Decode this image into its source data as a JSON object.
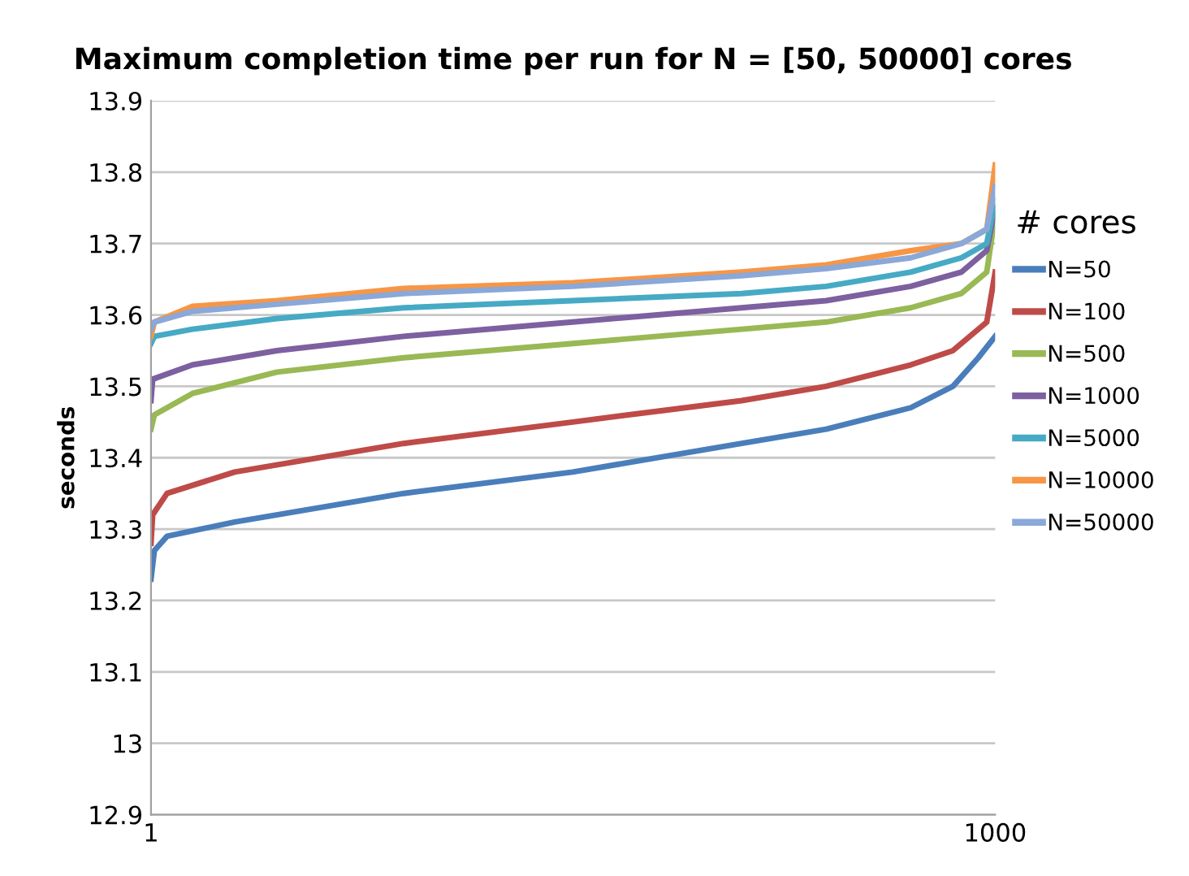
{
  "chart_data": {
    "type": "line",
    "title": "Maximum completion time per run for N = [50, 50000] cores",
    "ylabel": "seconds",
    "legend_title": "# cores",
    "legend": "right",
    "grid": "y",
    "marker": "none",
    "line_style": "solid",
    "xlim": [
      1,
      1000
    ],
    "xticks": [
      1,
      1000
    ],
    "ylim": [
      12.9,
      13.9
    ],
    "yticks": [
      12.9,
      13,
      13.1,
      13.2,
      13.3,
      13.4,
      13.5,
      13.6,
      13.7,
      13.8,
      13.9
    ],
    "series": [
      {
        "name": "N=50",
        "color": "#4a7ebb",
        "x": [
          1,
          5,
          20,
          100,
          300,
          500,
          700,
          800,
          900,
          950,
          980,
          1000
        ],
        "values": [
          13.23,
          13.27,
          13.29,
          13.31,
          13.35,
          13.38,
          13.42,
          13.44,
          13.47,
          13.5,
          13.54,
          13.57
        ]
      },
      {
        "name": "N=100",
        "color": "#be4b48",
        "x": [
          1,
          3,
          20,
          100,
          300,
          500,
          700,
          800,
          900,
          950,
          990,
          1000
        ],
        "values": [
          13.28,
          13.32,
          13.35,
          13.38,
          13.42,
          13.45,
          13.48,
          13.5,
          13.53,
          13.55,
          13.59,
          13.66
        ]
      },
      {
        "name": "N=500",
        "color": "#98b954",
        "x": [
          1,
          5,
          50,
          150,
          300,
          500,
          700,
          800,
          900,
          960,
          990,
          1000
        ],
        "values": [
          13.44,
          13.46,
          13.49,
          13.52,
          13.54,
          13.56,
          13.58,
          13.59,
          13.61,
          13.63,
          13.66,
          13.74
        ]
      },
      {
        "name": "N=1000",
        "color": "#7d60a0",
        "x": [
          1,
          3,
          50,
          150,
          300,
          500,
          700,
          800,
          900,
          960,
          990,
          1000
        ],
        "values": [
          13.48,
          13.51,
          13.53,
          13.55,
          13.57,
          13.59,
          13.61,
          13.62,
          13.64,
          13.66,
          13.69,
          13.75
        ]
      },
      {
        "name": "N=5000",
        "color": "#46aac5",
        "x": [
          1,
          5,
          50,
          150,
          300,
          500,
          700,
          800,
          900,
          960,
          990,
          1000
        ],
        "values": [
          13.56,
          13.57,
          13.58,
          13.595,
          13.61,
          13.62,
          13.63,
          13.64,
          13.66,
          13.68,
          13.7,
          13.76
        ]
      },
      {
        "name": "N=10000",
        "color": "#f79646",
        "x": [
          1,
          5,
          50,
          150,
          300,
          500,
          700,
          800,
          900,
          960,
          990,
          1000
        ],
        "values": [
          13.57,
          13.59,
          13.612,
          13.62,
          13.637,
          13.645,
          13.66,
          13.67,
          13.69,
          13.7,
          13.72,
          13.81
        ]
      },
      {
        "name": "N=50000",
        "color": "#8aa8d8",
        "x": [
          1,
          5,
          50,
          150,
          300,
          500,
          700,
          800,
          900,
          960,
          990,
          1000
        ],
        "values": [
          13.58,
          13.59,
          13.605,
          13.615,
          13.63,
          13.64,
          13.655,
          13.665,
          13.68,
          13.7,
          13.72,
          13.78
        ]
      }
    ]
  }
}
